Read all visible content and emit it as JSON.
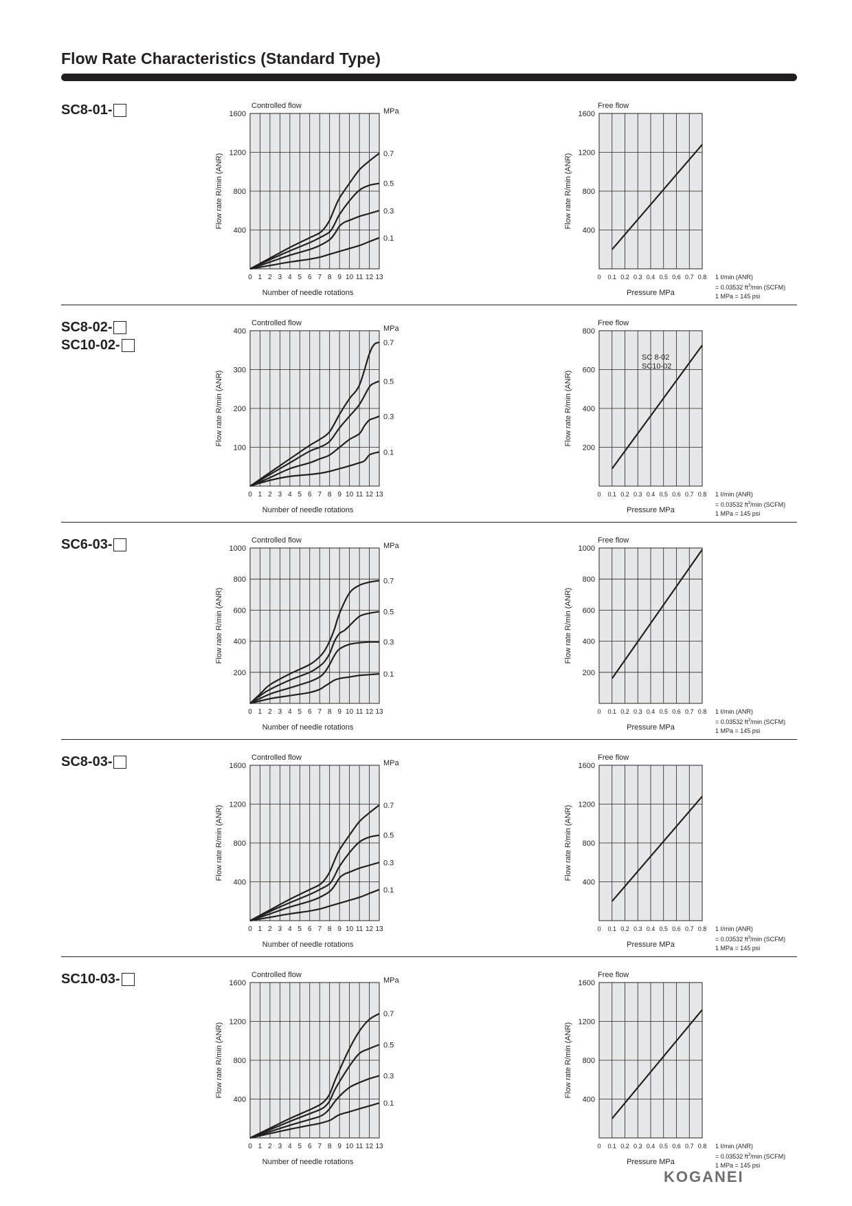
{
  "page": {
    "title": "Flow Rate Characteristics (Standard Type)",
    "brand": "KOGANEI"
  },
  "conversion_note": {
    "line1": "1 ℓ/min (ANR)",
    "line2_prefix": "= 0.03532 ft",
    "line2_sup": "3",
    "line2_suffix": "/min (SCFM)",
    "line3": "1 MPa = 145 psi"
  },
  "rows": [
    {
      "labels": [
        "SC8-01-"
      ]
    },
    {
      "labels": [
        "SC8-02-",
        "SC10-02-"
      ]
    },
    {
      "labels": [
        "SC6-03-"
      ]
    },
    {
      "labels": [
        "SC8-03-"
      ]
    },
    {
      "labels": [
        "SC10-03-"
      ]
    }
  ],
  "chart_data": [
    {
      "id": "sc8-01-controlled",
      "type": "line",
      "title": "Controlled flow",
      "ylabel": "Flow rate R/min (ANR)",
      "xlabel": "Number of needle rotations",
      "series_unit": "MPa",
      "ylim": [
        0,
        1600
      ],
      "yticks": [
        400,
        800,
        1200,
        1600
      ],
      "xlim": [
        0,
        13
      ],
      "xticks": [
        0,
        1,
        2,
        3,
        4,
        5,
        6,
        7,
        8,
        9,
        10,
        11,
        12,
        13
      ],
      "grid": true,
      "series": [
        {
          "name": "0.7",
          "x": [
            0,
            2,
            4,
            6,
            7,
            7.5,
            8,
            8.5,
            9,
            10,
            11,
            12,
            13
          ],
          "y": [
            0,
            110,
            220,
            320,
            370,
            420,
            500,
            620,
            730,
            880,
            1020,
            1110,
            1190
          ]
        },
        {
          "name": "0.5",
          "x": [
            0,
            2,
            4,
            6,
            7,
            8,
            8.5,
            9,
            10,
            11,
            12,
            13
          ],
          "y": [
            0,
            95,
            185,
            270,
            320,
            380,
            460,
            560,
            700,
            810,
            860,
            880
          ]
        },
        {
          "name": "0.3",
          "x": [
            0,
            2,
            4,
            6,
            7,
            8,
            8.5,
            9,
            9.5,
            10,
            11,
            12,
            13
          ],
          "y": [
            0,
            70,
            140,
            200,
            240,
            300,
            360,
            440,
            480,
            500,
            540,
            570,
            600
          ]
        },
        {
          "name": "0.1",
          "x": [
            0,
            2,
            4,
            6,
            7,
            8,
            9,
            10,
            11,
            12,
            13
          ],
          "y": [
            0,
            35,
            70,
            100,
            120,
            150,
            180,
            210,
            240,
            280,
            320
          ]
        }
      ]
    },
    {
      "id": "sc8-01-free",
      "type": "line",
      "title": "Free flow",
      "ylabel": "Flow rate R/min (ANR)",
      "xlabel": "Pressure MPa",
      "ylim": [
        0,
        1600
      ],
      "yticks": [
        400,
        800,
        1200,
        1600
      ],
      "xlim": [
        0,
        0.8
      ],
      "xticks": [
        0,
        0.1,
        0.2,
        0.3,
        0.4,
        0.5,
        0.6,
        0.7,
        0.8
      ],
      "xticklabels": [
        "0",
        "0.1",
        "0.2",
        "0.3",
        "0.4",
        "0.5",
        "0.6",
        "0.7",
        "0.8"
      ],
      "grid": true,
      "series": [
        {
          "x": [
            0.1,
            0.8
          ],
          "y": [
            200,
            1280
          ]
        }
      ]
    },
    {
      "id": "sc8-02-controlled",
      "type": "line",
      "title": "Controlled flow",
      "ylabel": "Flow rate R/min (ANR)",
      "xlabel": "Number of needle rotations",
      "series_unit": "MPa",
      "ylim": [
        0,
        400
      ],
      "yticks": [
        100,
        200,
        300,
        400
      ],
      "xlim": [
        0,
        13
      ],
      "xticks": [
        0,
        1,
        2,
        3,
        4,
        5,
        6,
        7,
        8,
        9,
        10,
        11,
        12,
        13
      ],
      "grid": true,
      "series": [
        {
          "name": "0.7",
          "x": [
            0,
            2,
            4,
            6,
            7,
            8,
            9,
            10,
            11,
            12,
            12.5,
            13
          ],
          "y": [
            0,
            35,
            70,
            105,
            120,
            140,
            185,
            225,
            260,
            340,
            365,
            370
          ]
        },
        {
          "name": "0.5",
          "x": [
            0,
            2,
            4,
            6,
            7,
            8,
            9,
            10,
            11,
            12,
            12.5,
            13
          ],
          "y": [
            0,
            30,
            60,
            90,
            100,
            115,
            150,
            180,
            210,
            255,
            265,
            270
          ]
        },
        {
          "name": "0.3",
          "x": [
            0,
            2,
            4,
            6,
            7,
            8,
            9,
            10,
            11,
            11.5,
            12,
            12.5,
            13
          ],
          "y": [
            0,
            22,
            45,
            60,
            70,
            80,
            100,
            120,
            135,
            155,
            170,
            175,
            180
          ]
        },
        {
          "name": "0.1",
          "x": [
            0,
            2,
            4,
            6,
            7,
            8,
            9,
            10,
            11,
            11.5,
            12,
            12.5,
            13
          ],
          "y": [
            0,
            15,
            25,
            30,
            33,
            38,
            45,
            52,
            60,
            65,
            80,
            85,
            88
          ]
        }
      ]
    },
    {
      "id": "sc8-02-free",
      "type": "line",
      "title": "Free flow",
      "ylabel": "Flow rate R/min (ANR)",
      "xlabel": "Pressure MPa",
      "ylim": [
        0,
        800
      ],
      "yticks": [
        200,
        400,
        600,
        800
      ],
      "xlim": [
        0,
        0.8
      ],
      "xticks": [
        0,
        0.1,
        0.2,
        0.3,
        0.4,
        0.5,
        0.6,
        0.7,
        0.8
      ],
      "xticklabels": [
        "0",
        "0.1",
        "0.2",
        "0.3",
        "0.4",
        "0.5",
        "0.6",
        "0.7",
        "0.8"
      ],
      "grid": true,
      "annotations": [
        "SC  8-02",
        "SC10-02"
      ],
      "series": [
        {
          "x": [
            0.1,
            0.8
          ],
          "y": [
            90,
            725
          ]
        }
      ]
    },
    {
      "id": "sc6-03-controlled",
      "type": "line",
      "title": "Controlled flow",
      "ylabel": "Flow rate R/min (ANR)",
      "xlabel": "Number of needle rotations",
      "series_unit": "MPa",
      "ylim": [
        0,
        1000
      ],
      "yticks": [
        200,
        400,
        600,
        800,
        1000
      ],
      "xlim": [
        0,
        13
      ],
      "xticks": [
        0,
        1,
        2,
        3,
        4,
        5,
        6,
        7,
        8,
        9,
        10,
        11,
        12,
        13
      ],
      "grid": true,
      "series": [
        {
          "name": "0.7",
          "x": [
            0,
            1,
            2,
            4,
            6,
            7,
            7.5,
            8,
            8.5,
            9,
            10,
            11,
            12,
            13
          ],
          "y": [
            0,
            60,
            120,
            190,
            250,
            300,
            340,
            400,
            480,
            580,
            710,
            760,
            780,
            790
          ]
        },
        {
          "name": "0.5",
          "x": [
            0,
            1,
            2,
            4,
            6,
            7,
            7.5,
            8,
            8.5,
            9,
            9.5,
            10,
            11,
            12,
            13
          ],
          "y": [
            0,
            50,
            90,
            150,
            200,
            240,
            270,
            320,
            400,
            450,
            470,
            500,
            560,
            580,
            590
          ]
        },
        {
          "name": "0.3",
          "x": [
            0,
            2,
            4,
            6,
            7,
            7.5,
            8,
            8.5,
            9,
            10,
            11,
            12,
            13
          ],
          "y": [
            0,
            60,
            100,
            140,
            170,
            200,
            250,
            310,
            350,
            380,
            390,
            395,
            395
          ]
        },
        {
          "name": "0.1",
          "x": [
            0,
            2,
            4,
            6,
            7,
            7.5,
            8,
            8.5,
            9,
            10,
            11,
            12,
            13
          ],
          "y": [
            0,
            30,
            50,
            70,
            90,
            110,
            130,
            150,
            160,
            170,
            180,
            185,
            190
          ]
        }
      ]
    },
    {
      "id": "sc6-03-free",
      "type": "line",
      "title": "Free flow",
      "ylabel": "Flow rate R/min (ANR)",
      "xlabel": "Pressure MPa",
      "ylim": [
        0,
        1000
      ],
      "yticks": [
        200,
        400,
        600,
        800,
        1000
      ],
      "xlim": [
        0,
        0.8
      ],
      "xticks": [
        0,
        0.1,
        0.2,
        0.3,
        0.4,
        0.5,
        0.6,
        0.7,
        0.8
      ],
      "xticklabels": [
        "0",
        "0.1",
        "0.2",
        "0.3",
        "0.4",
        "0.5",
        "0.6",
        "0.7",
        "0.8"
      ],
      "grid": true,
      "series": [
        {
          "x": [
            0.1,
            0.8
          ],
          "y": [
            160,
            990
          ]
        }
      ]
    },
    {
      "id": "sc8-03-controlled",
      "type": "line",
      "title": "Controlled flow",
      "ylabel": "Flow rate R/min (ANR)",
      "xlabel": "Number of needle rotations",
      "series_unit": "MPa",
      "ylim": [
        0,
        1600
      ],
      "yticks": [
        400,
        800,
        1200,
        1600
      ],
      "xlim": [
        0,
        13
      ],
      "xticks": [
        0,
        1,
        2,
        3,
        4,
        5,
        6,
        7,
        8,
        9,
        10,
        11,
        12,
        13
      ],
      "grid": true,
      "series": [
        {
          "name": "0.7",
          "x": [
            0,
            2,
            4,
            6,
            7,
            7.5,
            8,
            8.5,
            9,
            10,
            11,
            12,
            13
          ],
          "y": [
            0,
            110,
            220,
            320,
            370,
            420,
            500,
            620,
            730,
            880,
            1020,
            1110,
            1190
          ]
        },
        {
          "name": "0.5",
          "x": [
            0,
            2,
            4,
            6,
            7,
            8,
            8.5,
            9,
            10,
            11,
            12,
            13
          ],
          "y": [
            0,
            95,
            185,
            270,
            320,
            380,
            460,
            560,
            700,
            810,
            860,
            880
          ]
        },
        {
          "name": "0.3",
          "x": [
            0,
            2,
            4,
            6,
            7,
            8,
            8.5,
            9,
            9.5,
            10,
            11,
            12,
            13
          ],
          "y": [
            0,
            70,
            140,
            200,
            240,
            300,
            360,
            440,
            480,
            500,
            540,
            570,
            600
          ]
        },
        {
          "name": "0.1",
          "x": [
            0,
            2,
            4,
            6,
            7,
            8,
            9,
            10,
            11,
            12,
            13
          ],
          "y": [
            0,
            35,
            70,
            100,
            120,
            150,
            180,
            210,
            240,
            280,
            320
          ]
        }
      ]
    },
    {
      "id": "sc8-03-free",
      "type": "line",
      "title": "Free flow",
      "ylabel": "Flow rate R/min (ANR)",
      "xlabel": "Pressure MPa",
      "ylim": [
        0,
        1600
      ],
      "yticks": [
        400,
        800,
        1200,
        1600
      ],
      "xlim": [
        0,
        0.8
      ],
      "xticks": [
        0,
        0.1,
        0.2,
        0.3,
        0.4,
        0.5,
        0.6,
        0.7,
        0.8
      ],
      "xticklabels": [
        "0",
        "0.1",
        "0.2",
        "0.3",
        "0.4",
        "0.5",
        "0.6",
        "0.7",
        "0.8"
      ],
      "grid": true,
      "series": [
        {
          "x": [
            0.1,
            0.8
          ],
          "y": [
            200,
            1280
          ]
        }
      ]
    },
    {
      "id": "sc10-03-controlled",
      "type": "line",
      "title": "Controlled flow",
      "ylabel": "Flow rate R/min (ANR)",
      "xlabel": "Number of needle rotations",
      "series_unit": "MPa",
      "ylim": [
        0,
        1600
      ],
      "yticks": [
        400,
        800,
        1200,
        1600
      ],
      "xlim": [
        0,
        13
      ],
      "xticks": [
        0,
        1,
        2,
        3,
        4,
        5,
        6,
        7,
        8,
        9,
        10,
        11,
        12,
        13
      ],
      "grid": true,
      "series": [
        {
          "name": "0.7",
          "x": [
            0,
            2,
            4,
            6,
            7,
            7.5,
            8,
            8.5,
            9,
            10,
            11,
            12,
            13
          ],
          "y": [
            0,
            100,
            200,
            290,
            340,
            380,
            450,
            580,
            700,
            920,
            1100,
            1220,
            1280
          ]
        },
        {
          "name": "0.5",
          "x": [
            0,
            2,
            4,
            6,
            7,
            7.5,
            8,
            8.5,
            9,
            10,
            11,
            12,
            13
          ],
          "y": [
            0,
            85,
            170,
            250,
            290,
            320,
            380,
            490,
            580,
            740,
            870,
            920,
            960
          ]
        },
        {
          "name": "0.3",
          "x": [
            0,
            2,
            4,
            6,
            7,
            7.5,
            8,
            8.5,
            9,
            10,
            11,
            12,
            13
          ],
          "y": [
            0,
            65,
            130,
            190,
            220,
            250,
            300,
            370,
            430,
            520,
            570,
            610,
            640
          ]
        },
        {
          "name": "0.1",
          "x": [
            0,
            2,
            4,
            6,
            7,
            8,
            8.5,
            9,
            10,
            11,
            12,
            13
          ],
          "y": [
            0,
            45,
            90,
            130,
            150,
            180,
            210,
            240,
            270,
            300,
            330,
            360
          ]
        }
      ]
    },
    {
      "id": "sc10-03-free",
      "type": "line",
      "title": "Free flow",
      "ylabel": "Flow rate R/min (ANR)",
      "xlabel": "Pressure MPa",
      "ylim": [
        0,
        1600
      ],
      "yticks": [
        400,
        800,
        1200,
        1600
      ],
      "xlim": [
        0,
        0.8
      ],
      "xticks": [
        0,
        0.1,
        0.2,
        0.3,
        0.4,
        0.5,
        0.6,
        0.7,
        0.8
      ],
      "xticklabels": [
        "0",
        "0.1",
        "0.2",
        "0.3",
        "0.4",
        "0.5",
        "0.6",
        "0.7",
        "0.8"
      ],
      "grid": true,
      "series": [
        {
          "x": [
            0.1,
            0.8
          ],
          "y": [
            200,
            1320
          ]
        }
      ]
    }
  ]
}
